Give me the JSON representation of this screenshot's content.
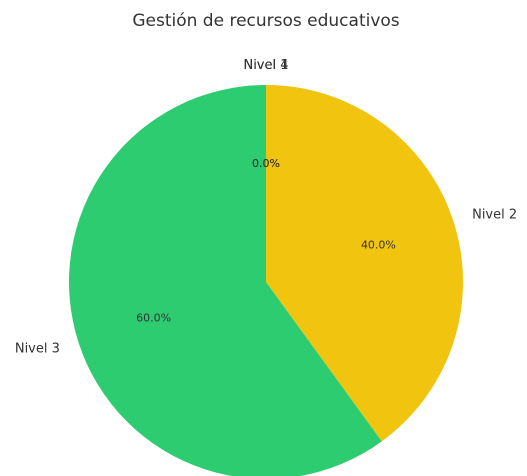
{
  "chart_data": {
    "type": "pie",
    "title": "Gestión de recursos educativos",
    "categories": [
      "Nivel 1",
      "Nivel 2",
      "Nivel 3",
      "Nivel 4"
    ],
    "values": [
      0,
      40,
      60,
      0
    ],
    "value_labels": [
      "0.0%",
      "40.0%",
      "60.0%",
      "0.0%"
    ],
    "colors": [
      "#e74c3c",
      "#f1c40f",
      "#2ecc71",
      "#3498db"
    ]
  }
}
